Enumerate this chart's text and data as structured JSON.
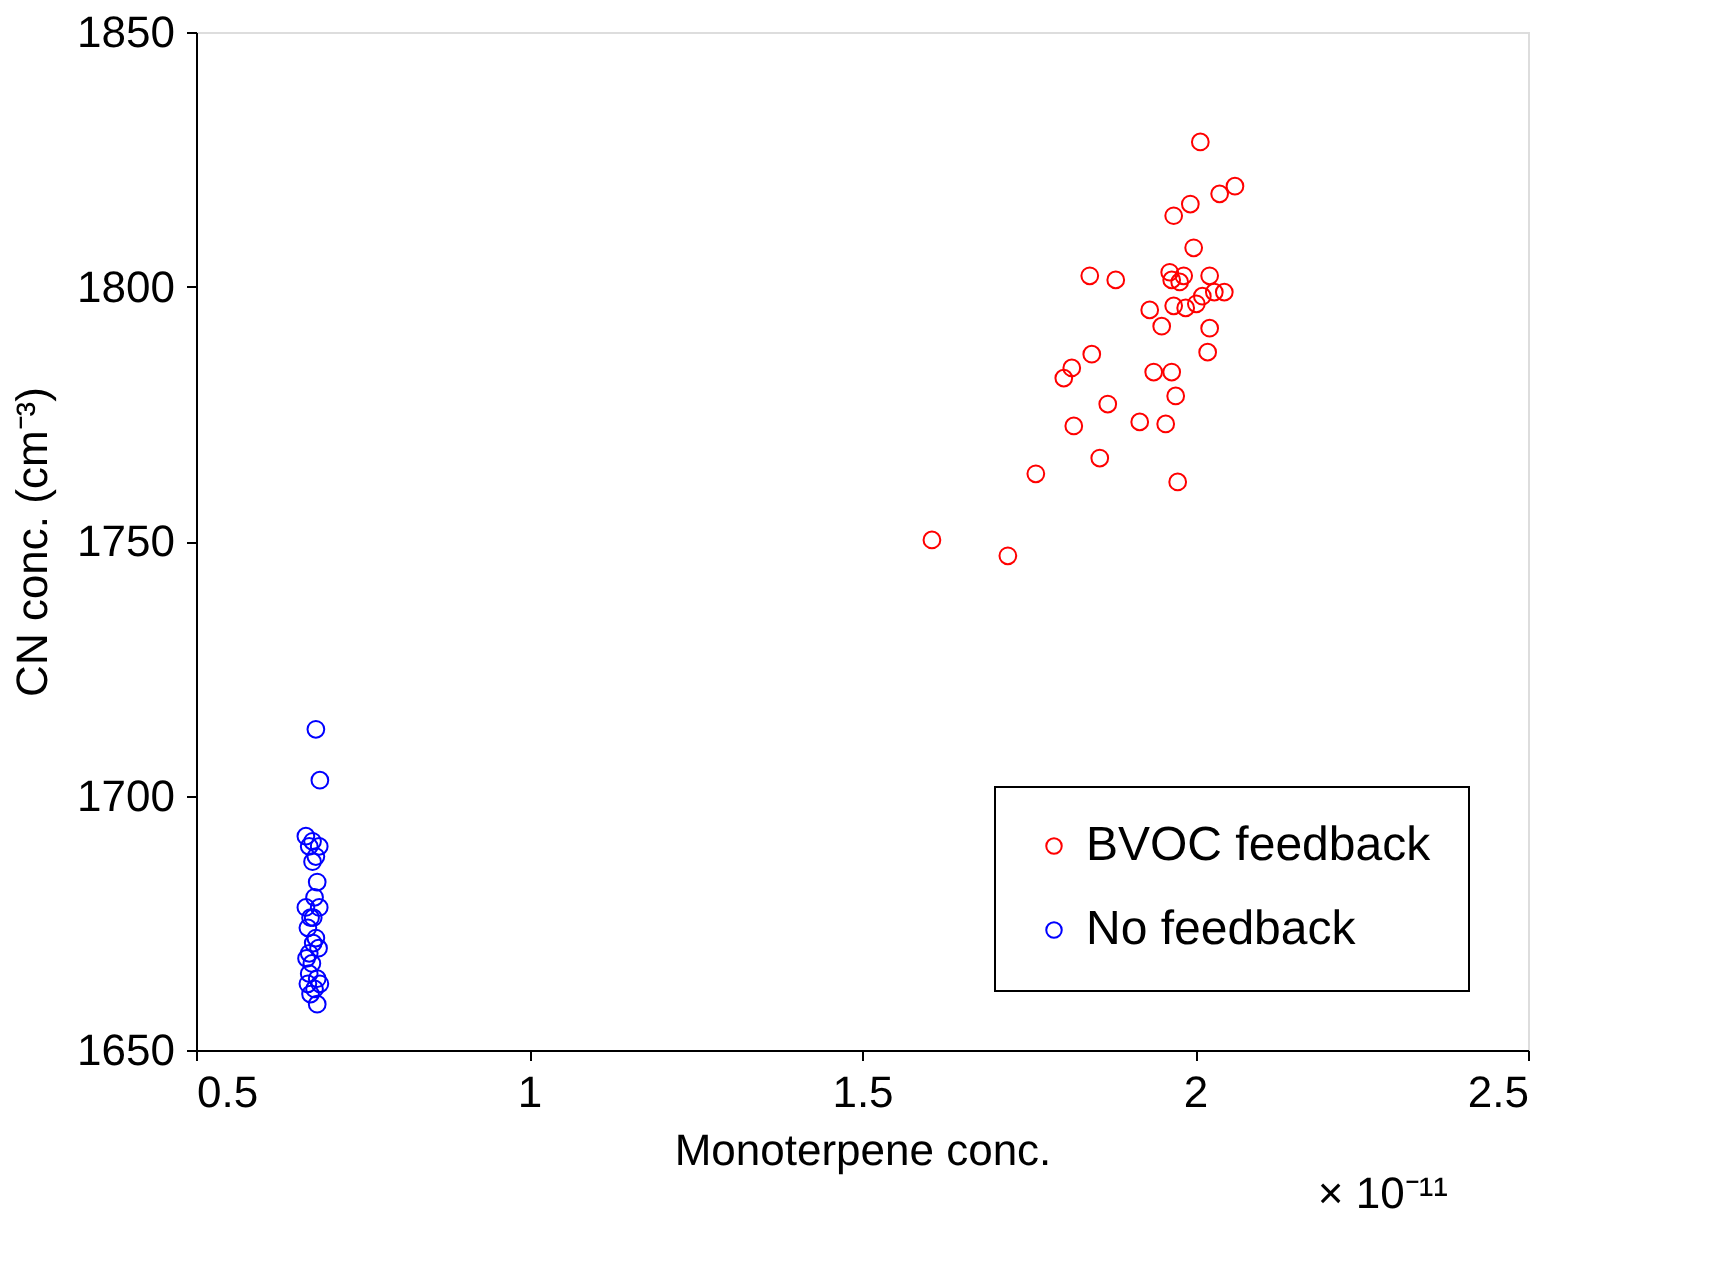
{
  "chart_data": {
    "type": "scatter",
    "xlabel": "Monoterpene conc.",
    "ylabel": "CN conc. (cm⁻³)",
    "xlim": [
      0.5,
      2.5
    ],
    "xticks": [
      0.5,
      1,
      1.5,
      2,
      2.5
    ],
    "ylim": [
      1650,
      1850
    ],
    "yticks": [
      1650,
      1700,
      1750,
      1800,
      1850
    ],
    "grid": false,
    "legend": "bottom right",
    "marker": "circle",
    "annotations": [
      "× 10⁻¹¹"
    ],
    "series": [
      {
        "name": "BVOC feedback",
        "color": "#ff0000",
        "x": [
          2.008,
          2.06,
          2.037,
          1.993,
          1.968,
          1.998,
          1.842,
          1.881,
          1.962,
          1.983,
          2.022,
          1.965,
          1.977,
          2.044,
          2.029,
          2.011,
          2.002,
          1.986,
          1.968,
          1.932,
          1.95,
          2.022,
          2.019,
          1.845,
          1.815,
          1.803,
          1.938,
          1.965,
          1.971,
          1.869,
          1.818,
          1.917,
          1.956,
          1.857,
          1.761,
          1.974,
          1.605,
          1.719
        ],
        "values": [
          1828.4,
          1819.7,
          1818.2,
          1816.2,
          1813.9,
          1807.6,
          1802.1,
          1801.3,
          1802.8,
          1802.1,
          1802.1,
          1801.3,
          1800.9,
          1798.9,
          1798.9,
          1798.1,
          1796.6,
          1795.8,
          1796.2,
          1795.4,
          1792.2,
          1791.8,
          1787.1,
          1786.7,
          1784.0,
          1782.0,
          1783.2,
          1783.2,
          1778.5,
          1776.9,
          1772.6,
          1773.4,
          1773.0,
          1766.3,
          1763.2,
          1761.6,
          1750.2,
          1747.1
        ]
      },
      {
        "name": "No feedback",
        "color": "#0000ff",
        "x": [
          0.68,
          0.686,
          0.665,
          0.675,
          0.685,
          0.67,
          0.68,
          0.675,
          0.682,
          0.678,
          0.665,
          0.685,
          0.672,
          0.668,
          0.68,
          0.676,
          0.684,
          0.666,
          0.674,
          0.67,
          0.682,
          0.668,
          0.678,
          0.672,
          0.686,
          0.682,
          0.676,
          0.67
        ],
        "values": [
          1713,
          1703,
          1692,
          1691,
          1690,
          1690,
          1688,
          1687,
          1683,
          1680,
          1678,
          1678,
          1676,
          1674,
          1672,
          1671,
          1670,
          1668,
          1667,
          1665,
          1664,
          1663,
          1662,
          1661,
          1663,
          1659,
          1676,
          1669
        ]
      }
    ]
  }
}
